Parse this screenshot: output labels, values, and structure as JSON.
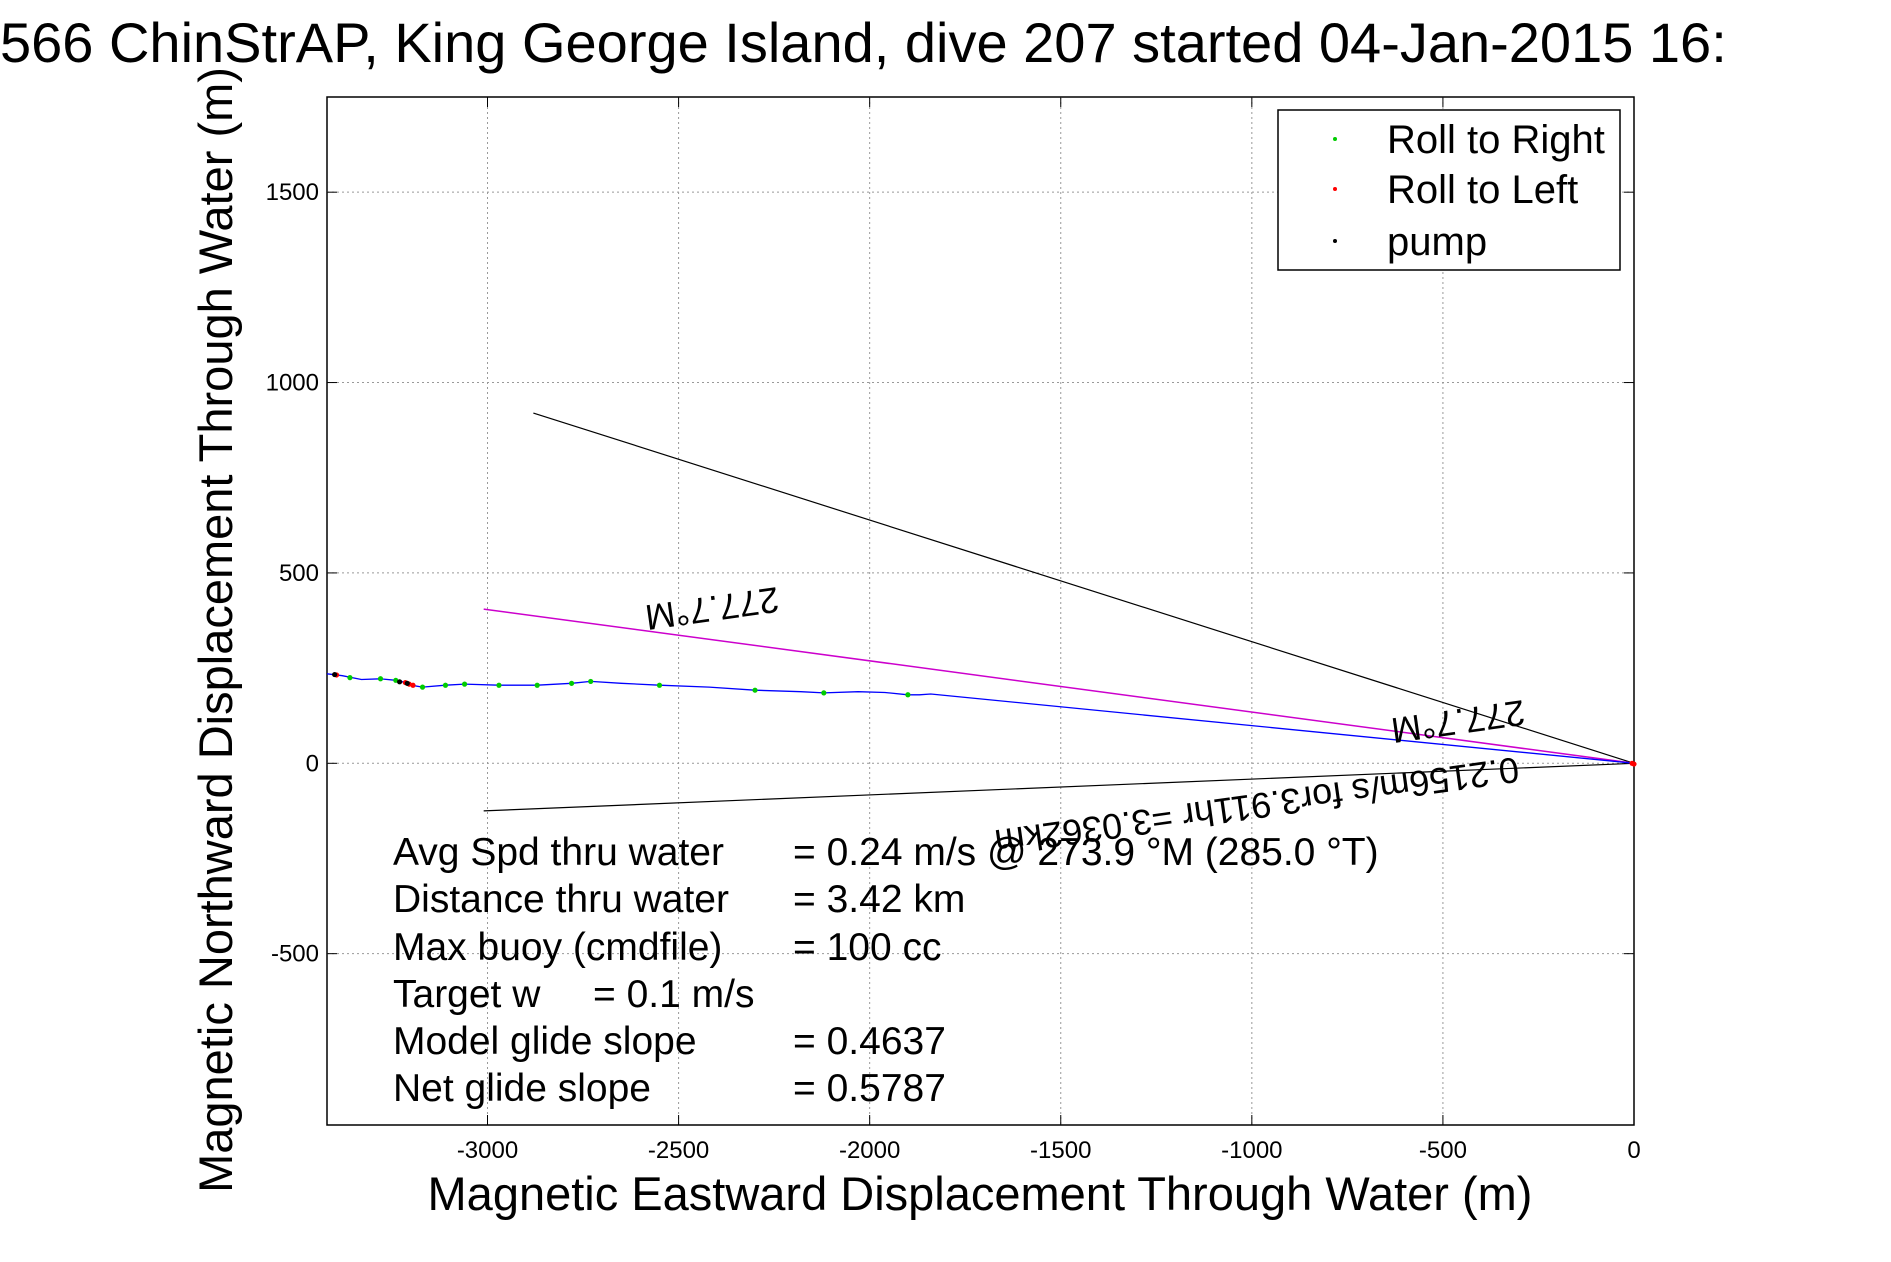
{
  "chart_data": {
    "type": "line",
    "title": "566 ChinStrAP, King George Island, dive 207 started 04-Jan-2015 16:",
    "xlabel": "Magnetic Eastward Displacement Through Water (m)",
    "ylabel": "Magnetic Northward Displacement Through Water (m)",
    "xlim": [
      -3420,
      0
    ],
    "ylim": [
      -950,
      1750
    ],
    "x_ticks": [
      -3000,
      -2500,
      -2000,
      -1500,
      -1000,
      -500,
      0
    ],
    "y_ticks": [
      -500,
      0,
      500,
      1000,
      1500
    ],
    "grid": true,
    "legend_position": "top-right",
    "legend": [
      {
        "label": "Roll to Right",
        "color": "#00cc00"
      },
      {
        "label": "Roll to Left",
        "color": "#ff0000"
      },
      {
        "label": "pump",
        "color": "#000000"
      }
    ],
    "track": {
      "color": "#0000ff",
      "x": [
        -3420,
        -3380,
        -3330,
        -3280,
        -3240,
        -3225,
        -3200,
        -3170,
        -3110,
        -3060,
        -2970,
        -2870,
        -2780,
        -2730,
        -2650,
        -2550,
        -2420,
        -2300,
        -2180,
        -2120,
        -2030,
        -1960,
        -1900,
        -1870,
        -1840,
        0
      ],
      "y": [
        235,
        230,
        220,
        222,
        218,
        215,
        205,
        200,
        205,
        208,
        205,
        205,
        210,
        215,
        210,
        205,
        200,
        192,
        188,
        185,
        188,
        186,
        180,
        180,
        182,
        0
      ]
    },
    "roll_right_points": {
      "x": [
        -3360,
        -3280,
        -3240,
        -3170,
        -3110,
        -3060,
        -2970,
        -2870,
        -2780,
        -2730,
        -2550,
        -2300,
        -2120,
        -1900
      ],
      "y": [
        225,
        222,
        218,
        200,
        205,
        208,
        205,
        205,
        210,
        215,
        205,
        192,
        185,
        180
      ]
    },
    "roll_left_points": {
      "x": [
        -3395,
        -3215,
        -3205,
        -3195,
        -5,
        0
      ],
      "y": [
        232,
        212,
        208,
        205,
        0,
        -2
      ]
    },
    "pump_points": {
      "x": [
        -3400,
        -3230,
        -3210
      ],
      "y": [
        233,
        214,
        210
      ]
    },
    "bounding_lines": {
      "color": "#000000",
      "lines": [
        {
          "x": [
            -2880,
            0
          ],
          "y": [
            920,
            0
          ]
        },
        {
          "x": [
            -3010,
            0
          ],
          "y": [
            -125,
            0
          ]
        }
      ]
    },
    "course_line": {
      "color": "#cc00cc",
      "x": [
        -3010,
        0
      ],
      "y": [
        405,
        0
      ]
    }
  },
  "annotations": {
    "heading_upper": "277.7°M",
    "heading_lower": "277.7°M",
    "current": "0.2156m/s for3.911hr =3.0362km"
  },
  "stats": [
    {
      "label": "Avg Spd thru water",
      "value": "=  0.24 m/s @ 273.9 °M (285.0 °T)"
    },
    {
      "label": "Distance thru water",
      "value": "=  3.42 km"
    },
    {
      "label": "Max buoy (cmdfile)",
      "value": "= 100 cc"
    },
    {
      "label": "Target w",
      "value": "= 0.1 m/s"
    },
    {
      "label": "Model glide slope",
      "value": "= 0.4637"
    },
    {
      "label": "Net glide slope",
      "value": "= 0.5787"
    }
  ]
}
